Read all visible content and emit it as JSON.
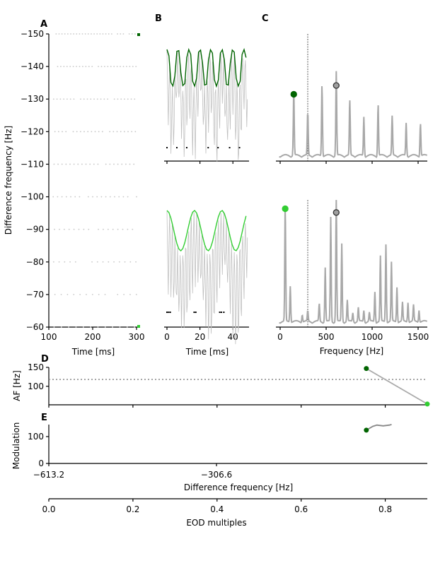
{
  "chart_data": [
    {
      "panel": "A",
      "type": "scatter",
      "xlabel": "Time [ms]",
      "ylabel": "Difference frequency [Hz]",
      "xlim": [
        100,
        305
      ],
      "ylim": [
        -150,
        -60
      ],
      "xticks": [
        "100",
        "200",
        "300"
      ],
      "yticks": [
        "−150",
        "−140",
        "−130",
        "−120",
        "−110",
        "−100",
        "−90",
        "−80",
        "−70",
        "−60"
      ],
      "rows": [
        -150,
        -140,
        -130,
        -120,
        -110,
        -100,
        -90,
        -80,
        -70,
        -60
      ],
      "marker_colors": {
        "top": "#006400",
        "bottom": "#32cd32"
      },
      "dot_color": "#c8c8c8"
    },
    {
      "panel": "B",
      "type": "line",
      "xlabel": "Time [ms]",
      "xlim": [
        0,
        50
      ],
      "xticks": [
        "0",
        "20",
        "40"
      ],
      "series": [
        {
          "difference_frequency": -150,
          "envelope_color": "#006400",
          "signal_color": "#c0c0c0",
          "spike_times": [
            0,
            6,
            12,
            25,
            31,
            38,
            44
          ]
        },
        {
          "difference_frequency": -60,
          "envelope_color": "#32cd32",
          "signal_color": "#c0c0c0",
          "spike_times": [
            0,
            1,
            2,
            16.5,
            17.5,
            32,
            33,
            34.5
          ]
        }
      ]
    },
    {
      "panel": "C",
      "type": "line",
      "xlabel": "Frequency [Hz]",
      "xlim": [
        -50,
        1600
      ],
      "xticks": [
        "0",
        "500",
        "1000",
        "1500"
      ],
      "vline": 300,
      "line_color": "#a8a8a8",
      "series": [
        {
          "peaks": [
            [
              148,
              0.52
            ],
            [
              300,
              0.34
            ],
            [
              455,
              0.57
            ],
            [
              610,
              0.67
            ],
            [
              757,
              0.44
            ],
            [
              910,
              0.31
            ],
            [
              1065,
              0.41
            ],
            [
              1218,
              0.31
            ],
            [
              1370,
              0.26
            ],
            [
              1525,
              0.26
            ]
          ],
          "markers": [
            {
              "f": 148,
              "amp": 0.52,
              "color": "#006400"
            },
            {
              "f": 610,
              "amp": 0.59,
              "color": "#a0a0a0",
              "edge": "#333333"
            }
          ]
        },
        {
          "peaks": [
            [
              55,
              0.93
            ],
            [
              110,
              0.29
            ],
            [
              240,
              0.06
            ],
            [
              300,
              0.08
            ],
            [
              425,
              0.14
            ],
            [
              490,
              0.43
            ],
            [
              550,
              0.83
            ],
            [
              610,
              1.0
            ],
            [
              670,
              0.62
            ],
            [
              730,
              0.17
            ],
            [
              790,
              0.07
            ],
            [
              850,
              0.11
            ],
            [
              910,
              0.09
            ],
            [
              970,
              0.07
            ],
            [
              1030,
              0.24
            ],
            [
              1090,
              0.52
            ],
            [
              1150,
              0.62
            ],
            [
              1210,
              0.47
            ],
            [
              1270,
              0.28
            ],
            [
              1330,
              0.15
            ],
            [
              1390,
              0.16
            ],
            [
              1450,
              0.13
            ],
            [
              1510,
              0.1
            ]
          ],
          "markers": [
            {
              "f": 55,
              "amp": 0.93,
              "color": "#32cd32"
            },
            {
              "f": 610,
              "amp": 0.9,
              "color": "#a0a0a0",
              "edge": "#333333"
            }
          ]
        }
      ]
    },
    {
      "panel": "D",
      "type": "line",
      "ylabel": "AF [Hz]",
      "ylim": [
        51,
        150
      ],
      "yticks": [
        "100",
        "150"
      ],
      "hline": 118,
      "points": [
        {
          "x": 0.755,
          "y": 147,
          "color": "#006400"
        },
        {
          "x": 0.9,
          "y": 53,
          "color": "#32cd32"
        }
      ]
    },
    {
      "panel": "E",
      "type": "line",
      "ylabel": "Modulation",
      "ylim": [
        0,
        145
      ],
      "yticks": [
        "0",
        "100"
      ],
      "xlabel": "Difference frequency [Hz]",
      "xticks": [
        "−613.2",
        "−306.6"
      ],
      "points": [
        {
          "x": 0.755,
          "y": 124,
          "color": "#006400"
        }
      ],
      "curve": [
        [
          0.755,
          124
        ],
        [
          0.77,
          138
        ],
        [
          0.78,
          143
        ],
        [
          0.795,
          140
        ],
        [
          0.81,
          143
        ],
        [
          0.815,
          145
        ]
      ]
    },
    {
      "panel": "EOD",
      "type": "axis",
      "xlabel": "EOD multiples",
      "xlim": [
        0,
        0.9
      ],
      "xticks": [
        "0.0",
        "0.2",
        "0.4",
        "0.6",
        "0.8"
      ]
    }
  ]
}
